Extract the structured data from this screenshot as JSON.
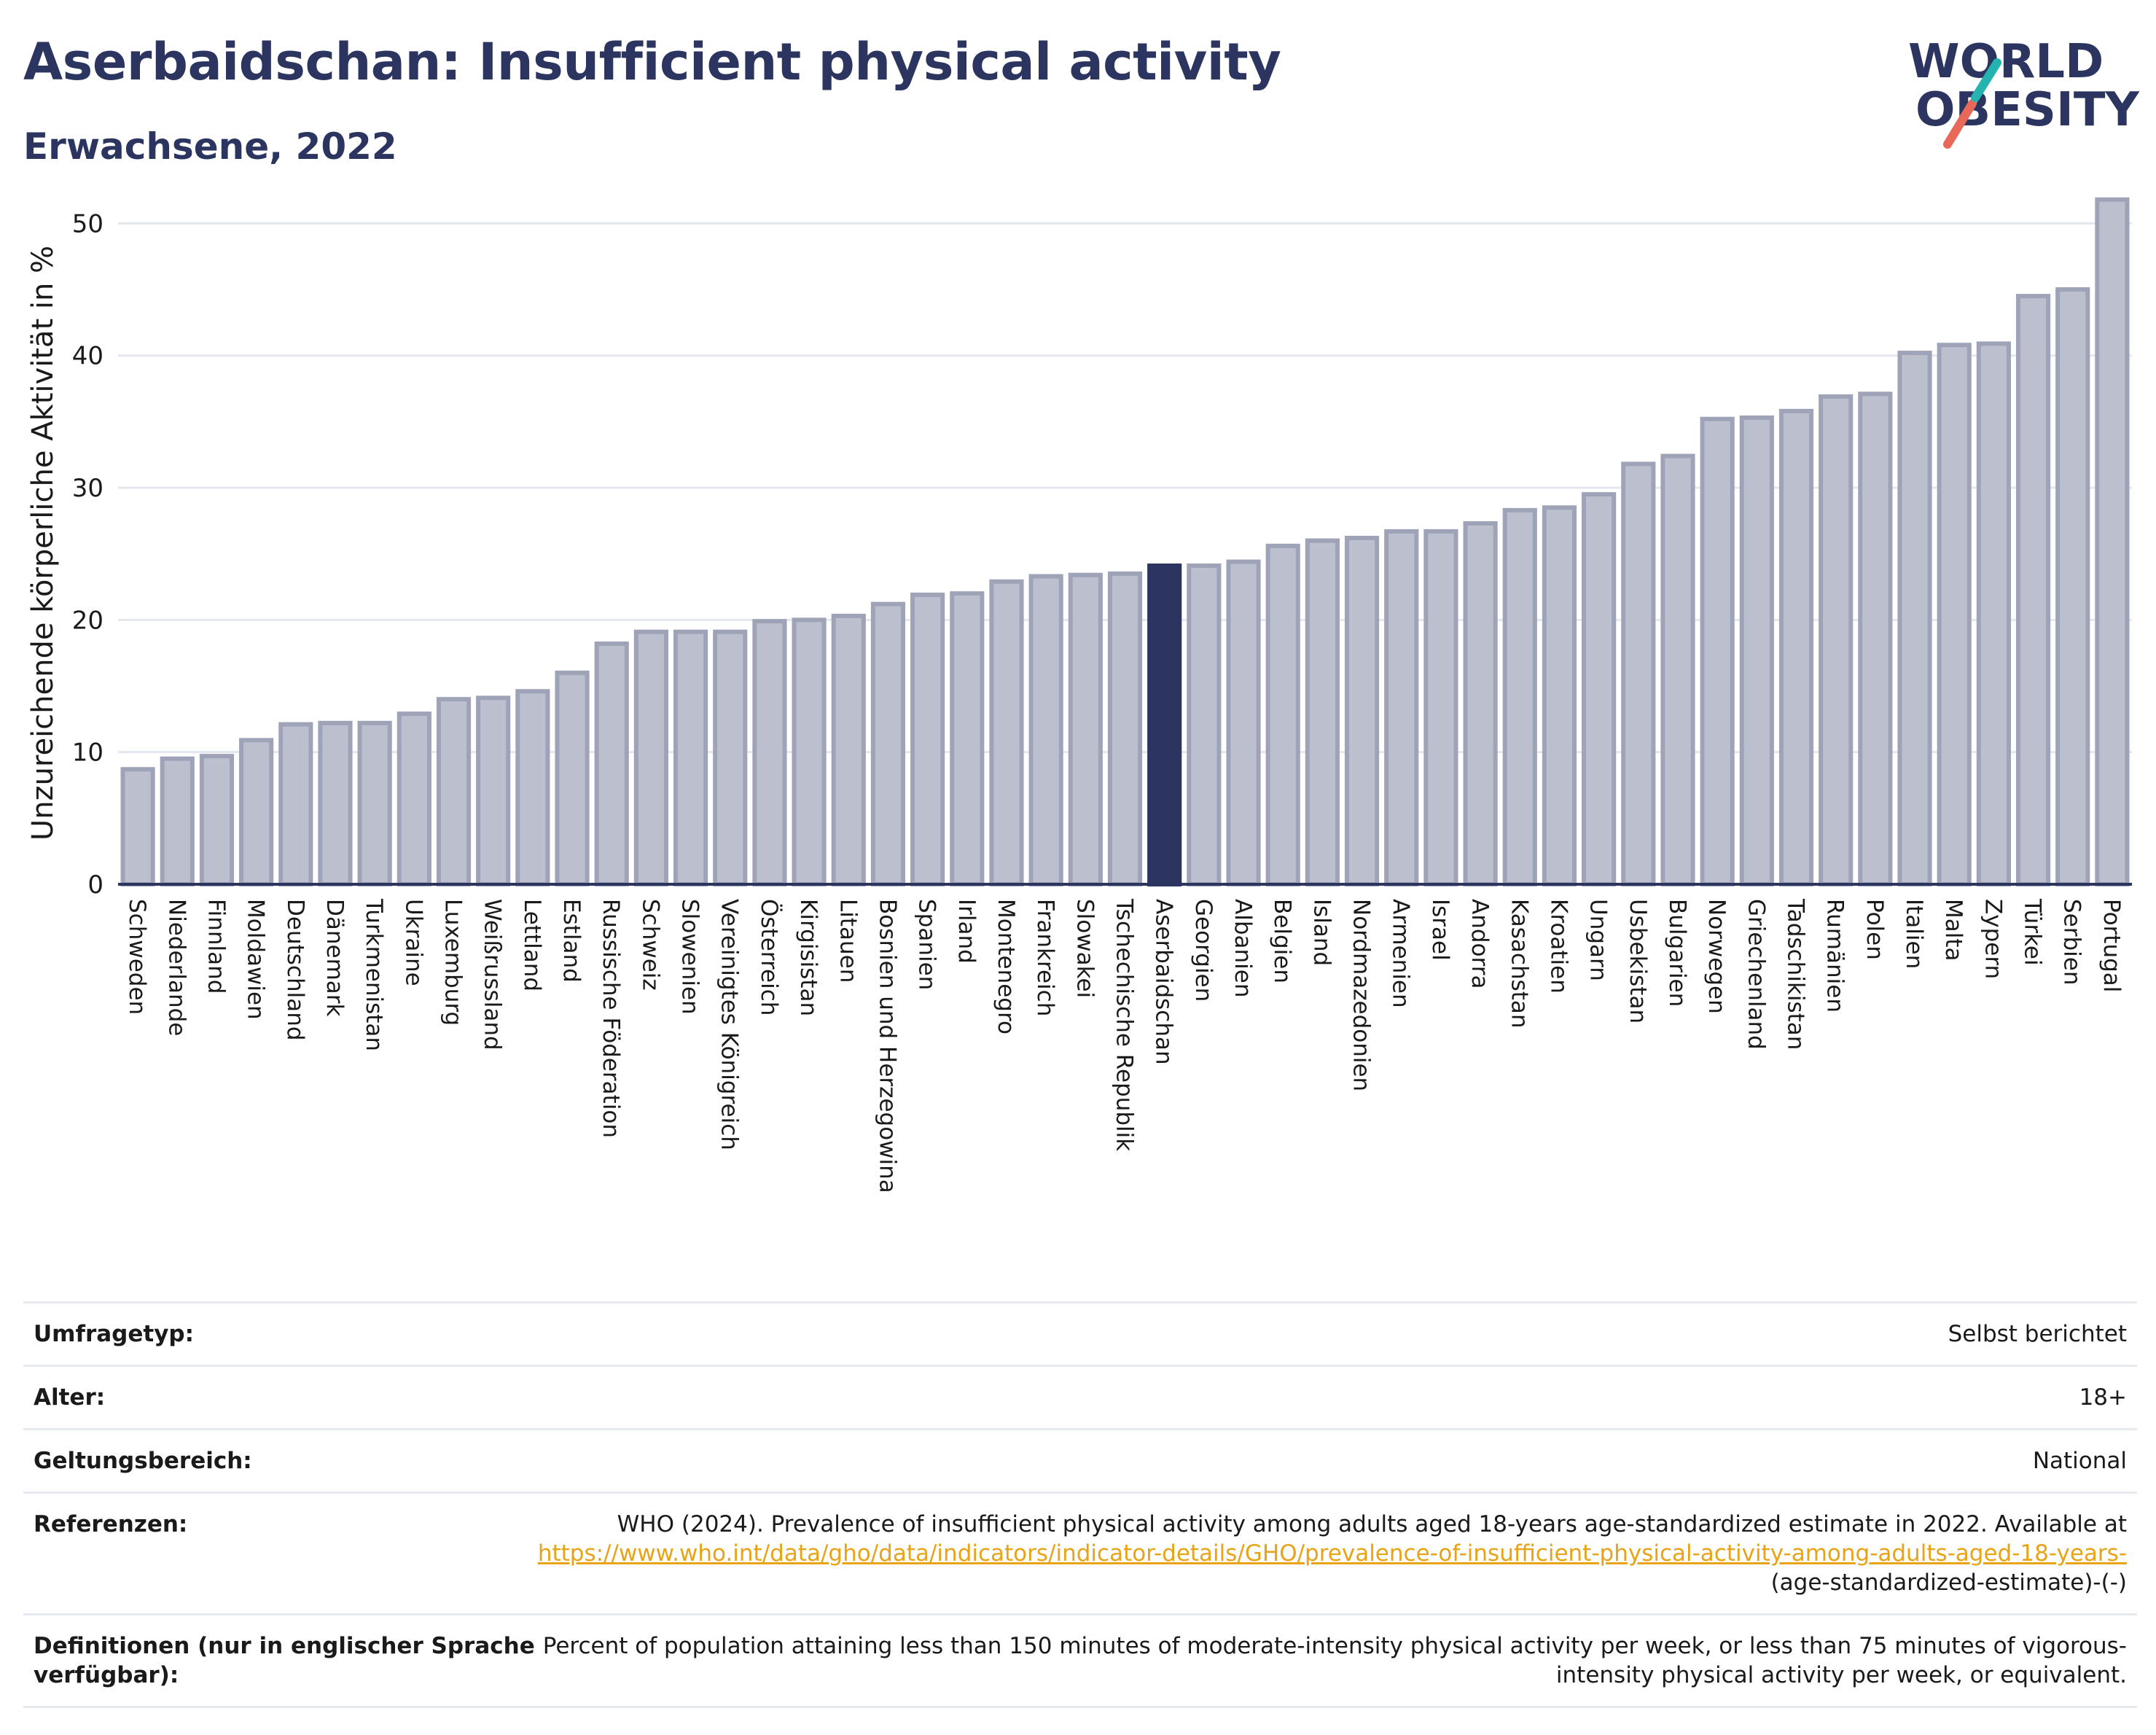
{
  "header": {
    "title": "Aserbaidschan: Insufficient physical activity",
    "subtitle": "Erwachsene, 2022"
  },
  "logo": {
    "line1": "WORLD",
    "line2": "OBESITY"
  },
  "colors": {
    "title": "#2b3560",
    "bar": "#bcc0ce",
    "bar_stroke": "#9ea3b8",
    "highlight": "#2b3560",
    "grid": "#e5e7ef",
    "link": "#e8a317"
  },
  "chart_data": {
    "type": "bar",
    "ylabel": "Unzureichende körperliche Aktivität in %",
    "ylim": [
      0,
      53
    ],
    "yticks": [
      0,
      10,
      20,
      30,
      40,
      50
    ],
    "grid": true,
    "highlight": "Aserbaidschan",
    "categories": [
      "Schweden",
      "Niederlande",
      "Finnland",
      "Moldawien",
      "Deutschland",
      "Dänemark",
      "Turkmenistan",
      "Ukraine",
      "Luxemburg",
      "Weißrussland",
      "Lettland",
      "Estland",
      "Russische Föderation",
      "Schweiz",
      "Slowenien",
      "Vereinigtes Königreich",
      "Österreich",
      "Kirgisistan",
      "Litauen",
      "Bosnien und Herzegowina",
      "Spanien",
      "Irland",
      "Montenegro",
      "Frankreich",
      "Slowakei",
      "Tschechische Republik",
      "Aserbaidschan",
      "Georgien",
      "Albanien",
      "Belgien",
      "Island",
      "Nordmazedonien",
      "Armenien",
      "Israel",
      "Andorra",
      "Kasachstan",
      "Kroatien",
      "Ungarn",
      "Usbekistan",
      "Bulgarien",
      "Norwegen",
      "Griechenland",
      "Tadschikistan",
      "Rumänien",
      "Polen",
      "Italien",
      "Malta",
      "Zypern",
      "Türkei",
      "Serbien",
      "Portugal"
    ],
    "values": [
      8.7,
      9.5,
      9.7,
      10.9,
      12.1,
      12.2,
      12.2,
      12.9,
      14.0,
      14.1,
      14.6,
      16.0,
      18.2,
      19.1,
      19.1,
      19.1,
      19.9,
      20.0,
      20.3,
      21.2,
      21.9,
      22.0,
      22.9,
      23.3,
      23.4,
      23.5,
      24.1,
      24.1,
      24.4,
      25.6,
      26.0,
      26.2,
      26.7,
      26.7,
      27.3,
      28.3,
      28.5,
      29.5,
      31.8,
      32.4,
      35.2,
      35.3,
      35.8,
      36.9,
      37.1,
      40.2,
      40.8,
      40.9,
      44.5,
      45.0,
      51.8
    ]
  },
  "meta": [
    {
      "key": "Umfragetyp:",
      "value": "Selbst berichtet"
    },
    {
      "key": "Alter:",
      "value": "18+"
    },
    {
      "key": "Geltungsbereich:",
      "value": "National"
    },
    {
      "key": "Referenzen:",
      "value_pre": "WHO (2024). Prevalence of insufficient physical activity among adults aged 18-years age-standardized estimate in 2022. Available at",
      "link": "https://www.who.int/data/gho/data/indicators/indicator-details/GHO/prevalence-of-insufficient-physical-activity-among-adults-aged-18-years-",
      "value_post": "(age-standardized-estimate)-(-)"
    },
    {
      "key": "Definitionen (nur in englischer Sprache verfügbar):",
      "value": "Percent of population attaining less than 150 minutes of moderate-intensity physical activity per week, or less than 75 minutes of vigorous-intensity physical activity per week, or equivalent."
    }
  ]
}
